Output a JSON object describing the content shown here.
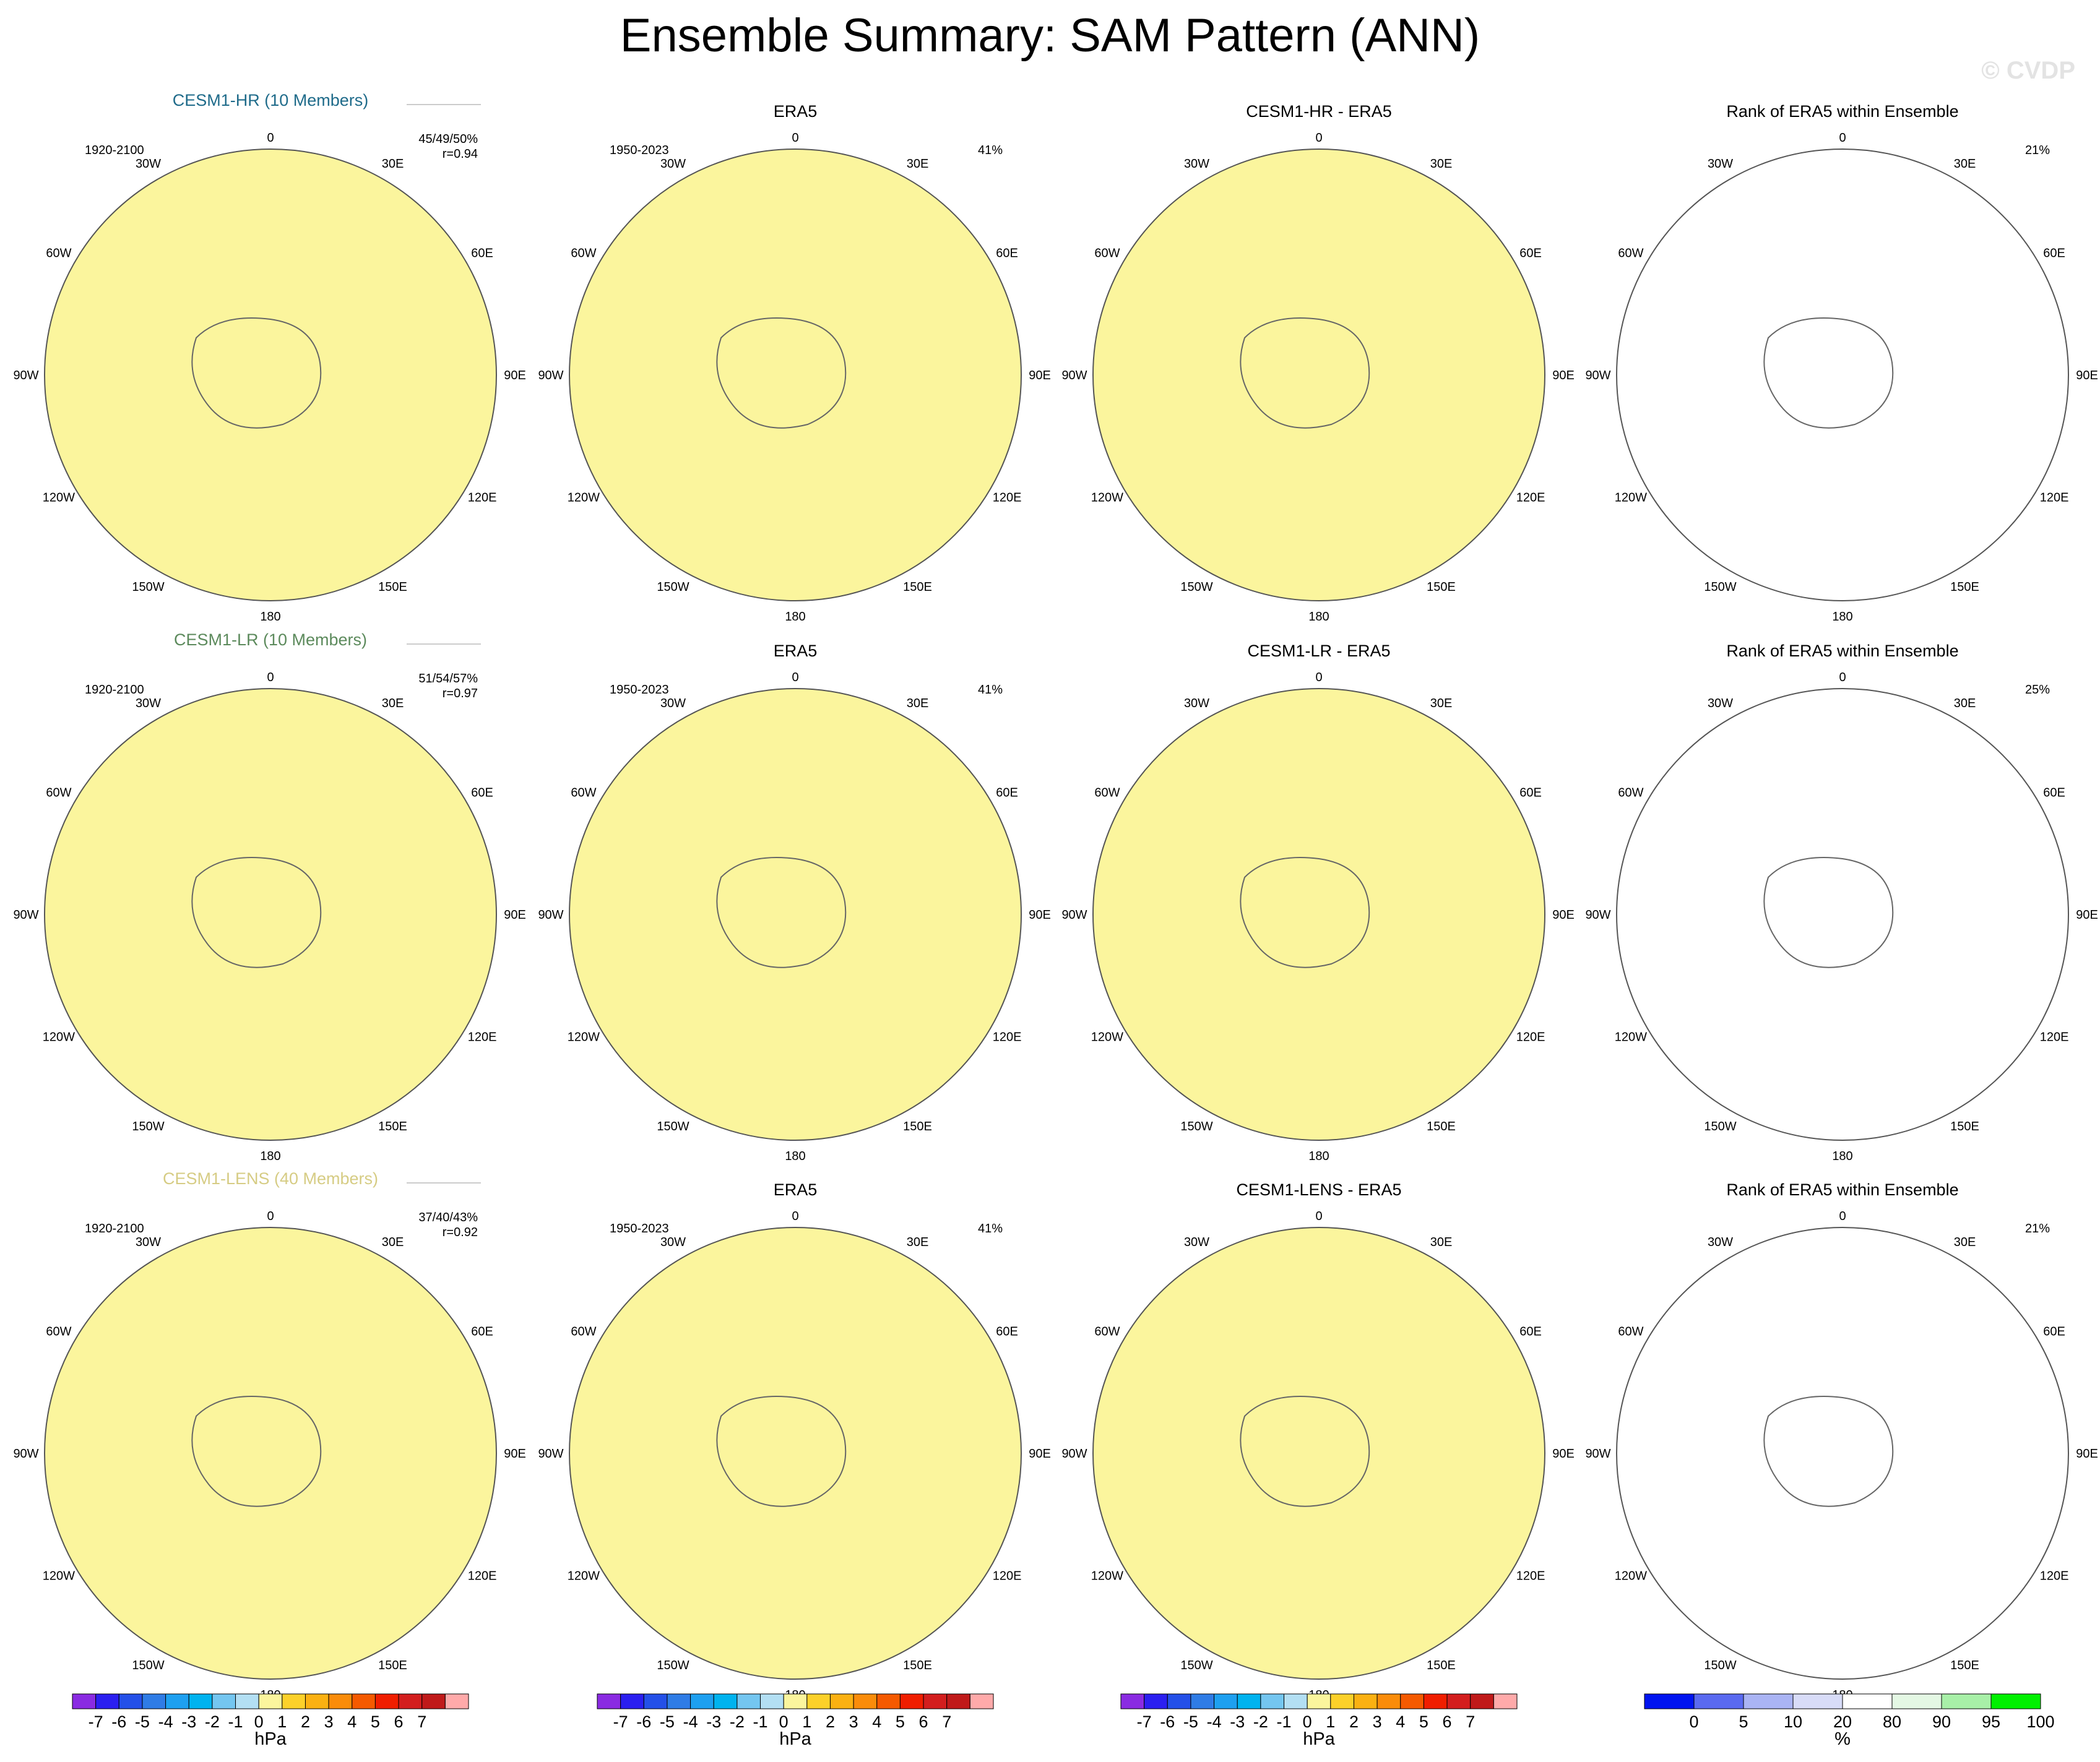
{
  "title": "Ensemble Summary: SAM Pattern (ANN)",
  "watermark": "© CVDP",
  "colors": {
    "base": "#fbf59d",
    "neg1": "#b3dff3",
    "neg2": "#74c6f0",
    "neg3": "#00b3ef",
    "neg4": "#3fa1e0",
    "pos1": "#fcd12a",
    "rank_blue": "#0014f0",
    "rank_green": "#00f000",
    "rank_lightgreen": "#a8f0a8",
    "rank_white": "#ffffff",
    "rank_lavender": "#d8dcf8",
    "model_hr": "#1f6b8a",
    "model_lr": "#5c8a5c",
    "model_lens": "#d6cc84"
  },
  "map_labels": {
    "lon_top": "0",
    "lon_bottom": "180",
    "left": [
      "30W",
      "60W",
      "90W",
      "120W",
      "150W"
    ],
    "right": [
      "30E",
      "60E",
      "90E",
      "120E",
      "150E"
    ]
  },
  "rows": [
    {
      "model_title": "CESM1-HR (10 Members)",
      "model_period": "1920-2100",
      "model_stats": "45/49/50%",
      "model_r": "r=0.94",
      "obs_title": "ERA5",
      "obs_period": "1950-2023",
      "obs_pct": "41%",
      "diff_title": "CESM1-HR - ERA5",
      "rank_title": "Rank of ERA5 within Ensemble",
      "rank_pct": "21%"
    },
    {
      "model_title": "CESM1-LR (10 Members)",
      "model_period": "1920-2100",
      "model_stats": "51/54/57%",
      "model_r": "r=0.97",
      "obs_title": "ERA5",
      "obs_period": "1950-2023",
      "obs_pct": "41%",
      "diff_title": "CESM1-LR - ERA5",
      "rank_title": "Rank of ERA5 within Ensemble",
      "rank_pct": "25%"
    },
    {
      "model_title": "CESM1-LENS (40 Members)",
      "model_period": "1920-2100",
      "model_stats": "37/40/43%",
      "model_r": "r=0.92",
      "obs_title": "ERA5",
      "obs_period": "1950-2023",
      "obs_pct": "41%",
      "diff_title": "CESM1-LENS - ERA5",
      "rank_title": "Rank of ERA5 within Ensemble",
      "rank_pct": "21%"
    }
  ],
  "colorbars": {
    "hpa": {
      "unit": "hPa",
      "labels": [
        "-7",
        "-6",
        "-5",
        "-4",
        "-3",
        "-2",
        "-1",
        "0",
        "1",
        "2",
        "3",
        "4",
        "5",
        "6",
        "7"
      ],
      "colors": [
        "#8a2be2",
        "#2b1ff0",
        "#2450e8",
        "#2f7ce6",
        "#1ea0f0",
        "#00b3ef",
        "#74c6f0",
        "#b3dff3",
        "#fbf59d",
        "#fcd12a",
        "#fbb112",
        "#fa8c0a",
        "#f55a00",
        "#f01e00",
        "#d31e1e",
        "#c01a1a",
        "#ffaaaa"
      ]
    },
    "pct": {
      "unit": "%",
      "labels": [
        "0",
        "5",
        "10",
        "20",
        "80",
        "90",
        "95",
        "100"
      ],
      "colors": [
        "#0014f0",
        "#5a6af0",
        "#aab4f4",
        "#d8dcf8",
        "#ffffff",
        "#e4f8e4",
        "#a8f0a8",
        "#00f000"
      ]
    }
  },
  "chart_data": [
    {
      "type": "heatmap",
      "title": "CESM1-HR (10 Members)",
      "units": "hPa",
      "period": "1920-2100",
      "stats": "45/49/50%",
      "r": "r=0.94"
    },
    {
      "type": "heatmap",
      "title": "ERA5",
      "units": "hPa",
      "period": "1950-2023",
      "pct": "41%"
    },
    {
      "type": "heatmap",
      "title": "CESM1-HR - ERA5",
      "units": "hPa"
    },
    {
      "type": "heatmap",
      "title": "Rank of ERA5 within Ensemble",
      "units": "%",
      "pct": "21%"
    },
    {
      "type": "heatmap",
      "title": "CESM1-LR (10 Members)",
      "units": "hPa",
      "period": "1920-2100",
      "stats": "51/54/57%",
      "r": "r=0.97"
    },
    {
      "type": "heatmap",
      "title": "ERA5",
      "units": "hPa",
      "period": "1950-2023",
      "pct": "41%"
    },
    {
      "type": "heatmap",
      "title": "CESM1-LR - ERA5",
      "units": "hPa"
    },
    {
      "type": "heatmap",
      "title": "Rank of ERA5 within Ensemble",
      "units": "%",
      "pct": "25%"
    },
    {
      "type": "heatmap",
      "title": "CESM1-LENS (40 Members)",
      "units": "hPa",
      "period": "1920-2100",
      "stats": "37/40/43%",
      "r": "r=0.92"
    },
    {
      "type": "heatmap",
      "title": "ERA5",
      "units": "hPa",
      "period": "1950-2023",
      "pct": "41%"
    },
    {
      "type": "heatmap",
      "title": "CESM1-LENS - ERA5",
      "units": "hPa"
    },
    {
      "type": "heatmap",
      "title": "Rank of ERA5 within Ensemble",
      "units": "%",
      "pct": "21%"
    }
  ]
}
